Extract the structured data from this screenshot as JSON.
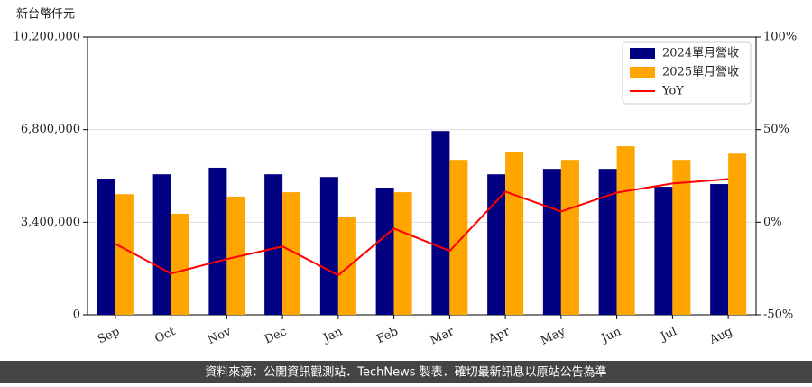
{
  "chart_data": {
    "type": "bar_line",
    "y_label": "新台幣仟元",
    "categories": [
      "Sep",
      "Oct",
      "Nov",
      "Dec",
      "Jan",
      "Feb",
      "Mar",
      "Apr",
      "May",
      "Jun",
      "Jul",
      "Aug"
    ],
    "series": [
      {
        "name": "2024單月營收",
        "type": "bar",
        "color": "#000080",
        "values": [
          5000000,
          5160000,
          5400000,
          5160000,
          5060000,
          4670000,
          6750000,
          5160000,
          5360000,
          5360000,
          4700000,
          4800000
        ]
      },
      {
        "name": "2025單月營收",
        "type": "bar",
        "color": "#ffa500",
        "values": [
          4430000,
          3710000,
          4340000,
          4500000,
          3610000,
          4500000,
          5690000,
          5990000,
          5690000,
          6190000,
          5690000,
          5920000
        ]
      },
      {
        "name": "YoY",
        "type": "line",
        "axis": "y2",
        "color": "#ff0000",
        "values": [
          -11.7,
          -27.7,
          -19.9,
          -13.1,
          -28.6,
          -3.4,
          -15.5,
          16.5,
          5.8,
          16,
          20.9,
          23.3
        ]
      }
    ],
    "ylim": [
      0,
      10200000
    ],
    "yticks": [
      0,
      {
        "value": 3400000,
        "label": "3,400,000"
      },
      {
        "value": 6800000,
        "label": "6,800,000"
      },
      {
        "value": 10200000,
        "label": "10,200,000"
      }
    ],
    "y2lim": [
      -50,
      100
    ],
    "y2ticks": [
      {
        "value": -50,
        "label": "-50%"
      },
      {
        "value": 0,
        "label": "0%"
      },
      {
        "value": 50,
        "label": "50%"
      },
      {
        "value": 100,
        "label": "100%"
      }
    ],
    "grid": true,
    "legend": "upper right",
    "footer": "資料來源：公開資訊觀測站．TechNews 製表．確切最新訊息以原站公告為準"
  }
}
